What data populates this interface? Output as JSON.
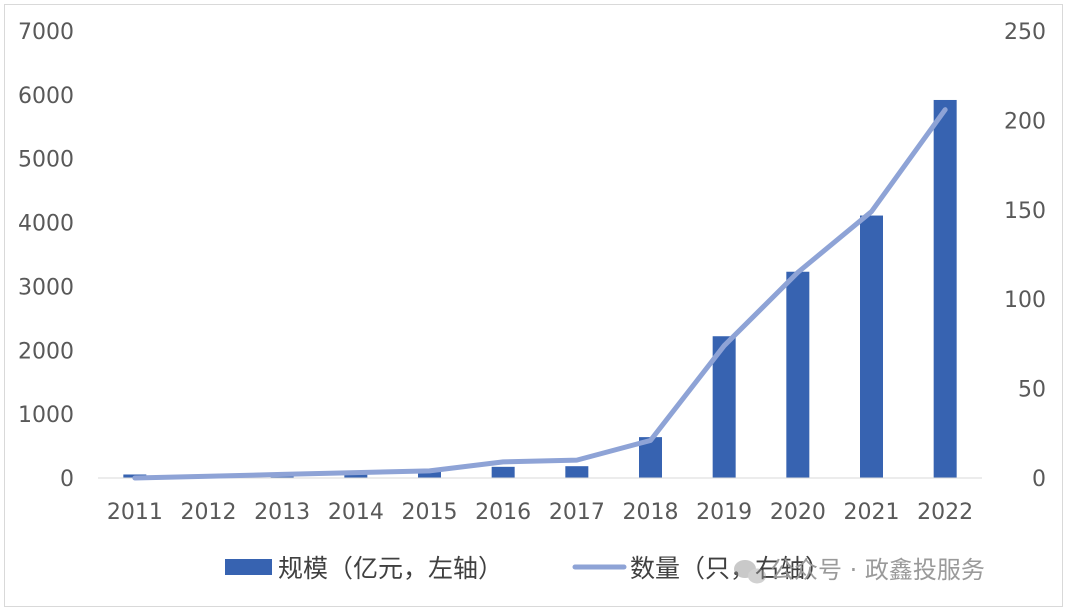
{
  "chart_data": {
    "type": "bar",
    "categories": [
      "2011",
      "2012",
      "2013",
      "2014",
      "2015",
      "2016",
      "2017",
      "2018",
      "2019",
      "2020",
      "2021",
      "2022"
    ],
    "series": [
      {
        "name": "规模（亿元，左轴）",
        "type": "bar",
        "axis": "left",
        "values": [
          55,
          35,
          45,
          75,
          115,
          175,
          185,
          640,
          2220,
          3230,
          4110,
          5920
        ]
      },
      {
        "name": "数量（只，右轴）",
        "type": "line",
        "axis": "right",
        "values": [
          0,
          1,
          2,
          3,
          4,
          9,
          10,
          21,
          74,
          115,
          149,
          206
        ]
      }
    ],
    "title": "",
    "xlabel": "",
    "ylabel": "",
    "ylim_left": [
      0,
      7000
    ],
    "ylim_right": [
      0,
      250
    ],
    "left_ticks": [
      "0",
      "1000",
      "2000",
      "3000",
      "4000",
      "5000",
      "6000",
      "7000"
    ],
    "right_ticks": [
      "0",
      "50",
      "100",
      "150",
      "200",
      "250"
    ],
    "grid": false,
    "legend": "bottom",
    "colors": {
      "bar": "#3763b1",
      "line": "#8ea3d6"
    }
  },
  "watermark": "公众号 · 政鑫投服务"
}
